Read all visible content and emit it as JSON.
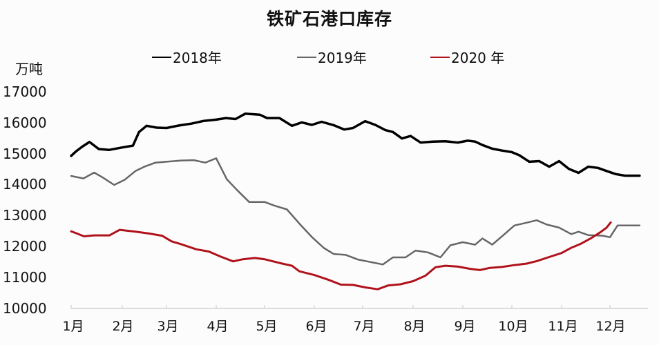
{
  "chart_data": {
    "type": "line",
    "title": "铁矿石港口库存",
    "ylabel": "万吨",
    "xlabel": "",
    "ylim": [
      10000,
      17000
    ],
    "yticks": [
      "17000",
      "16000",
      "15000",
      "14000",
      "13000",
      "12000",
      "11000",
      "10000"
    ],
    "ytick_values": [
      17000,
      16000,
      15000,
      14000,
      13000,
      12000,
      11000,
      10000
    ],
    "categories": [
      "1月",
      "2月",
      "3月",
      "4月",
      "5月",
      "6月",
      "7月",
      "8月",
      "9月",
      "10月",
      "11月",
      "12月"
    ],
    "grid": false,
    "legend_position": "top",
    "x_note": "x is fractional month (1.0 = start of 1月, 13.0 = end of 12月)",
    "series": [
      {
        "name": "2018年",
        "legend_label": "2018年",
        "color": "#000000",
        "width": 3.5,
        "points": [
          [
            1.0,
            14930
          ],
          [
            1.1,
            15080
          ],
          [
            1.22,
            15230
          ],
          [
            1.36,
            15380
          ],
          [
            1.54,
            15150
          ],
          [
            1.74,
            15120
          ],
          [
            2.0,
            15200
          ],
          [
            2.24,
            15260
          ],
          [
            2.38,
            15700
          ],
          [
            2.55,
            15900
          ],
          [
            2.78,
            15840
          ],
          [
            3.0,
            15830
          ],
          [
            3.25,
            15910
          ],
          [
            3.5,
            15970
          ],
          [
            3.75,
            16060
          ],
          [
            4.0,
            16100
          ],
          [
            4.2,
            16150
          ],
          [
            4.4,
            16120
          ],
          [
            4.6,
            16290
          ],
          [
            4.9,
            16260
          ],
          [
            5.05,
            16150
          ],
          [
            5.3,
            16150
          ],
          [
            5.55,
            15900
          ],
          [
            5.75,
            16010
          ],
          [
            5.95,
            15930
          ],
          [
            6.15,
            16030
          ],
          [
            6.4,
            15920
          ],
          [
            6.62,
            15780
          ],
          [
            6.8,
            15830
          ],
          [
            7.05,
            16050
          ],
          [
            7.25,
            15930
          ],
          [
            7.45,
            15760
          ],
          [
            7.6,
            15700
          ],
          [
            7.78,
            15490
          ],
          [
            7.95,
            15570
          ],
          [
            8.15,
            15360
          ],
          [
            8.4,
            15390
          ],
          [
            8.65,
            15400
          ],
          [
            8.9,
            15360
          ],
          [
            9.1,
            15420
          ],
          [
            9.25,
            15390
          ],
          [
            9.4,
            15280
          ],
          [
            9.6,
            15160
          ],
          [
            9.8,
            15100
          ],
          [
            10.0,
            15050
          ],
          [
            10.15,
            14950
          ],
          [
            10.35,
            14740
          ],
          [
            10.55,
            14760
          ],
          [
            10.75,
            14580
          ],
          [
            10.95,
            14760
          ],
          [
            11.15,
            14510
          ],
          [
            11.35,
            14380
          ],
          [
            11.55,
            14580
          ],
          [
            11.75,
            14540
          ],
          [
            11.95,
            14430
          ],
          [
            12.15,
            14340
          ],
          [
            12.4,
            14290
          ],
          [
            12.78,
            14290
          ]
        ]
      },
      {
        "name": "2019年",
        "legend_label": "2019年",
        "color": "#666666",
        "width": 2.5,
        "points": [
          [
            1.0,
            14280
          ],
          [
            1.24,
            14200
          ],
          [
            1.45,
            14390
          ],
          [
            1.62,
            14230
          ],
          [
            1.84,
            13990
          ],
          [
            2.05,
            14150
          ],
          [
            2.3,
            14440
          ],
          [
            2.5,
            14580
          ],
          [
            2.75,
            14710
          ],
          [
            3.0,
            14740
          ],
          [
            3.3,
            14780
          ],
          [
            3.55,
            14790
          ],
          [
            3.78,
            14710
          ],
          [
            4.0,
            14850
          ],
          [
            4.22,
            14170
          ],
          [
            4.42,
            13840
          ],
          [
            4.68,
            13440
          ],
          [
            5.0,
            13440
          ],
          [
            5.2,
            13320
          ],
          [
            5.45,
            13200
          ],
          [
            5.7,
            12740
          ],
          [
            5.95,
            12310
          ],
          [
            6.2,
            11950
          ],
          [
            6.4,
            11760
          ],
          [
            6.65,
            11730
          ],
          [
            6.9,
            11580
          ],
          [
            7.15,
            11500
          ],
          [
            7.4,
            11420
          ],
          [
            7.6,
            11650
          ],
          [
            7.85,
            11650
          ],
          [
            8.05,
            11870
          ],
          [
            8.3,
            11810
          ],
          [
            8.55,
            11650
          ],
          [
            8.75,
            12040
          ],
          [
            9.0,
            12140
          ],
          [
            9.25,
            12060
          ],
          [
            9.4,
            12260
          ],
          [
            9.6,
            12060
          ],
          [
            9.85,
            12400
          ],
          [
            10.05,
            12680
          ],
          [
            10.3,
            12770
          ],
          [
            10.5,
            12850
          ],
          [
            10.7,
            12710
          ],
          [
            10.95,
            12610
          ],
          [
            11.2,
            12400
          ],
          [
            11.35,
            12480
          ],
          [
            11.55,
            12370
          ],
          [
            11.85,
            12350
          ],
          [
            12.0,
            12300
          ],
          [
            12.2,
            12680
          ],
          [
            12.78,
            12680
          ]
        ]
      },
      {
        "name": "2020年",
        "legend_label": "2020 年",
        "color": "#b0121b",
        "width": 3,
        "points": [
          [
            1.0,
            12490
          ],
          [
            1.1,
            12430
          ],
          [
            1.25,
            12330
          ],
          [
            1.45,
            12360
          ],
          [
            1.75,
            12360
          ],
          [
            1.95,
            12540
          ],
          [
            2.3,
            12480
          ],
          [
            2.6,
            12420
          ],
          [
            2.9,
            12350
          ],
          [
            3.1,
            12170
          ],
          [
            3.3,
            12070
          ],
          [
            3.6,
            11910
          ],
          [
            3.85,
            11840
          ],
          [
            4.1,
            11670
          ],
          [
            4.35,
            11520
          ],
          [
            4.55,
            11590
          ],
          [
            4.8,
            11630
          ],
          [
            5.0,
            11590
          ],
          [
            5.3,
            11470
          ],
          [
            5.55,
            11380
          ],
          [
            5.7,
            11200
          ],
          [
            6.0,
            11080
          ],
          [
            6.3,
            10920
          ],
          [
            6.55,
            10770
          ],
          [
            6.8,
            10760
          ],
          [
            7.05,
            10680
          ],
          [
            7.3,
            10620
          ],
          [
            7.5,
            10740
          ],
          [
            7.75,
            10780
          ],
          [
            8.0,
            10880
          ],
          [
            8.25,
            11060
          ],
          [
            8.45,
            11330
          ],
          [
            8.65,
            11380
          ],
          [
            8.9,
            11350
          ],
          [
            9.15,
            11280
          ],
          [
            9.35,
            11240
          ],
          [
            9.55,
            11310
          ],
          [
            9.8,
            11340
          ],
          [
            10.05,
            11400
          ],
          [
            10.3,
            11450
          ],
          [
            10.5,
            11530
          ],
          [
            10.75,
            11660
          ],
          [
            11.0,
            11790
          ],
          [
            11.2,
            11960
          ],
          [
            11.4,
            12090
          ],
          [
            11.6,
            12260
          ],
          [
            11.8,
            12460
          ],
          [
            11.93,
            12610
          ],
          [
            12.02,
            12780
          ]
        ]
      }
    ]
  }
}
